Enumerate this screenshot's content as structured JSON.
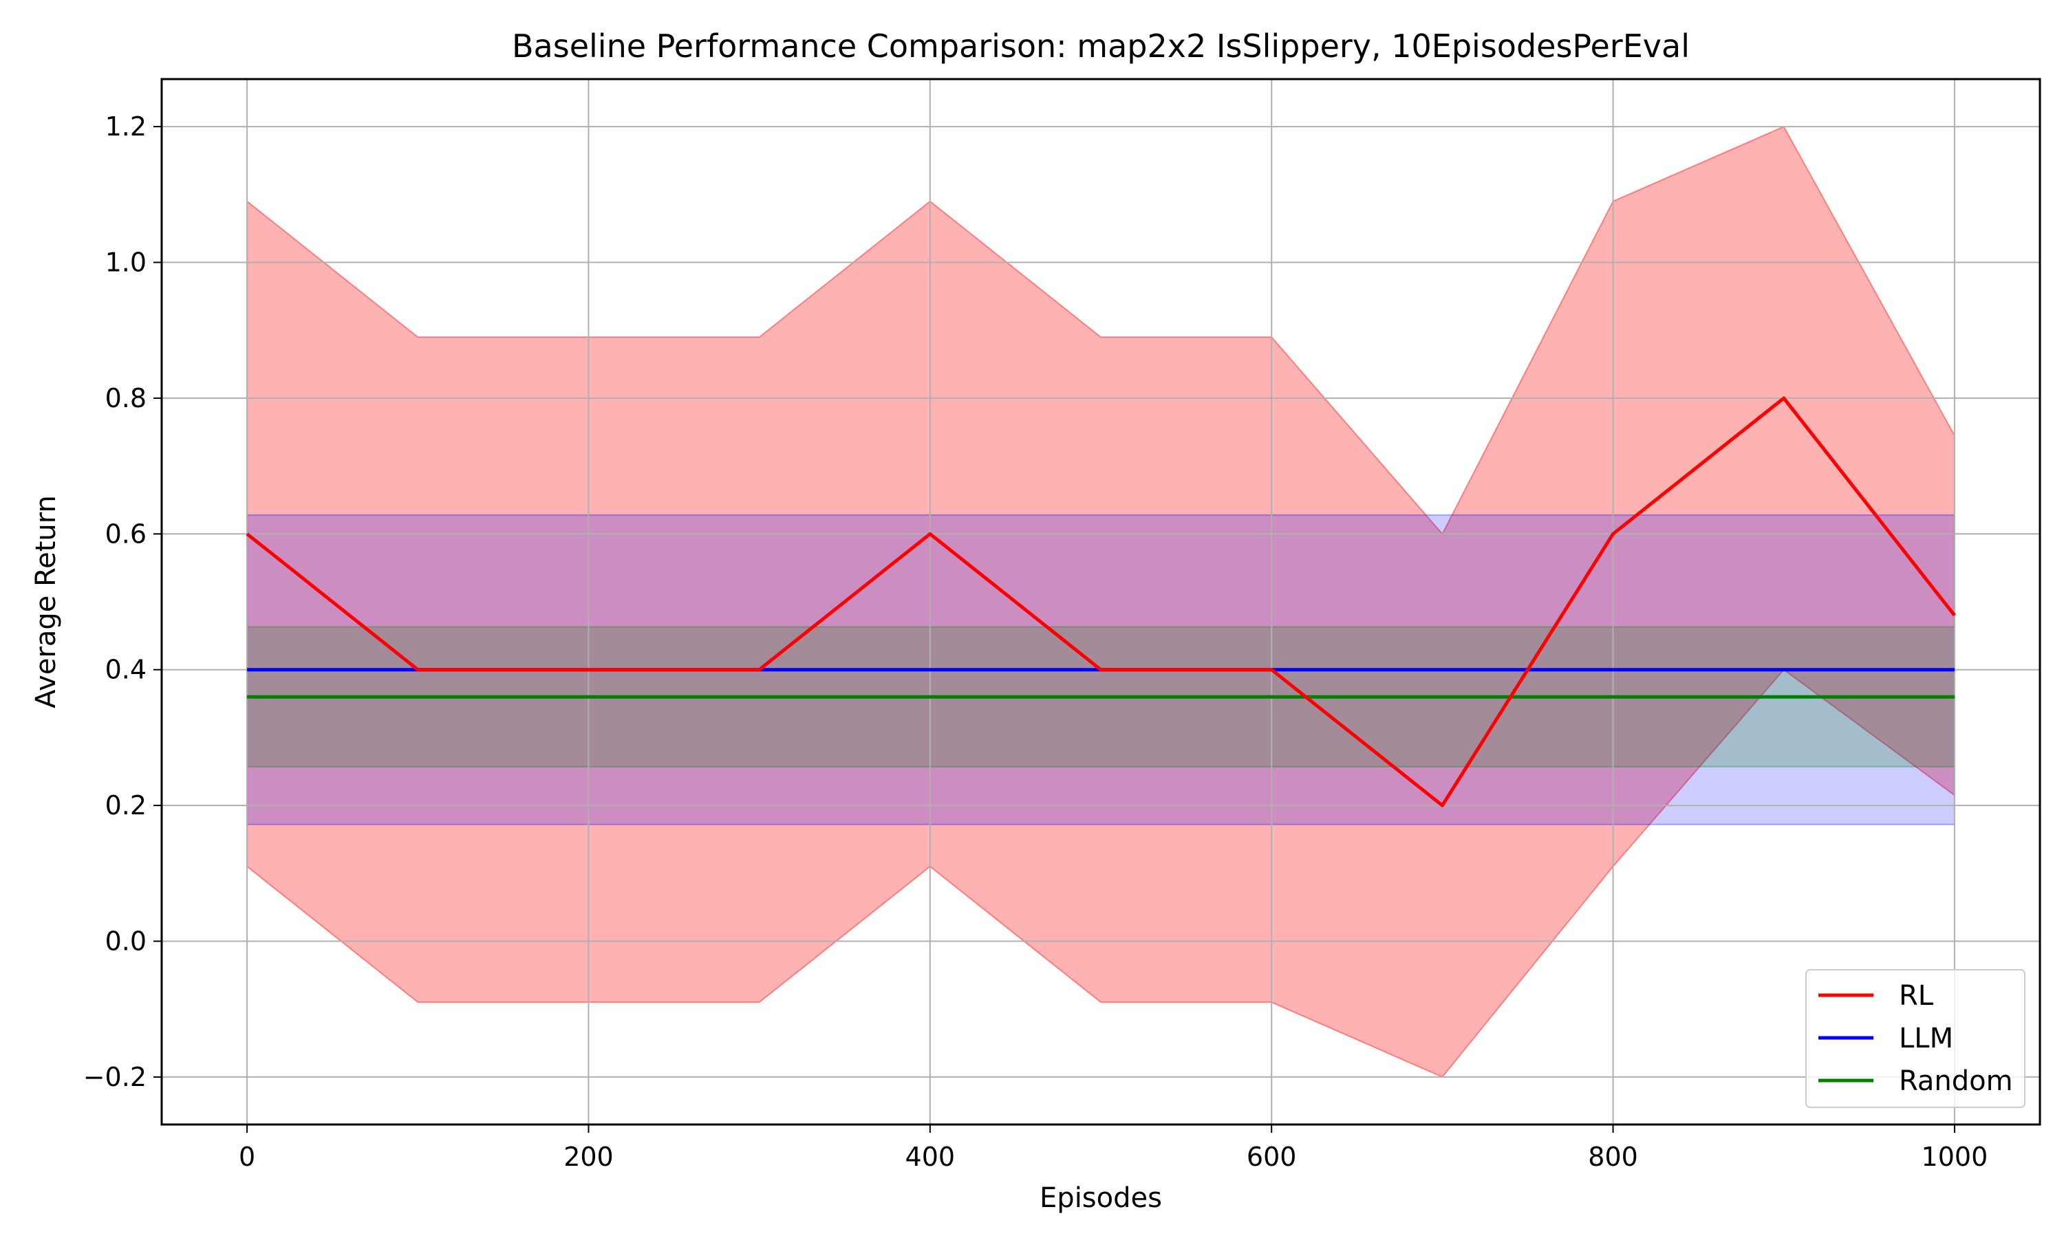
{
  "chart_data": {
    "type": "line",
    "title": "Baseline Performance Comparison: map2x2 IsSlippery, 10EpisodesPerEval",
    "xlabel": "Episodes",
    "ylabel": "Average Return",
    "xlim": [
      -50,
      1050
    ],
    "ylim": [
      -0.27,
      1.27
    ],
    "xticks": [
      0,
      200,
      400,
      600,
      800,
      1000
    ],
    "xtick_labels": [
      "0",
      "200",
      "400",
      "600",
      "800",
      "1000"
    ],
    "yticks": [
      -0.2,
      0.0,
      0.2,
      0.4,
      0.6,
      0.8,
      1.0,
      1.2
    ],
    "ytick_labels": [
      "−0.2",
      "0.0",
      "0.2",
      "0.4",
      "0.6",
      "0.8",
      "1.0",
      "1.2"
    ],
    "grid": true,
    "legend_position": "lower-right",
    "x": [
      0,
      100,
      200,
      300,
      400,
      500,
      600,
      700,
      800,
      900,
      1000
    ],
    "series": [
      {
        "name": "RL",
        "color": "#ff0000",
        "values": [
          0.6,
          0.4,
          0.4,
          0.4,
          0.6,
          0.4,
          0.4,
          0.2,
          0.6,
          0.8,
          0.48
        ],
        "upper": [
          1.09,
          0.89,
          0.89,
          0.89,
          1.09,
          0.89,
          0.89,
          0.6,
          1.09,
          1.2,
          0.745
        ],
        "lower": [
          0.11,
          -0.09,
          -0.09,
          -0.09,
          0.11,
          -0.09,
          -0.09,
          -0.2,
          0.11,
          0.4,
          0.215
        ],
        "band_color": "#ff0000",
        "band_opacity": 0.3
      },
      {
        "name": "LLM",
        "color": "#0000ff",
        "values": [
          0.4,
          0.4,
          0.4,
          0.4,
          0.4,
          0.4,
          0.4,
          0.4,
          0.4,
          0.4,
          0.4
        ],
        "upper": [
          0.628,
          0.628,
          0.628,
          0.628,
          0.628,
          0.628,
          0.628,
          0.628,
          0.628,
          0.628,
          0.628
        ],
        "lower": [
          0.172,
          0.172,
          0.172,
          0.172,
          0.172,
          0.172,
          0.172,
          0.172,
          0.172,
          0.172,
          0.172
        ],
        "band_color": "#0000ff",
        "band_opacity": 0.2
      },
      {
        "name": "Random",
        "color": "#008000",
        "values": [
          0.36,
          0.36,
          0.36,
          0.36,
          0.36,
          0.36,
          0.36,
          0.36,
          0.36,
          0.36,
          0.36
        ],
        "upper": [
          0.463,
          0.463,
          0.463,
          0.463,
          0.463,
          0.463,
          0.463,
          0.463,
          0.463,
          0.463,
          0.463
        ],
        "lower": [
          0.257,
          0.257,
          0.257,
          0.257,
          0.257,
          0.257,
          0.257,
          0.257,
          0.257,
          0.257,
          0.257
        ],
        "band_color": "#008000",
        "band_opacity": 0.2
      }
    ]
  }
}
